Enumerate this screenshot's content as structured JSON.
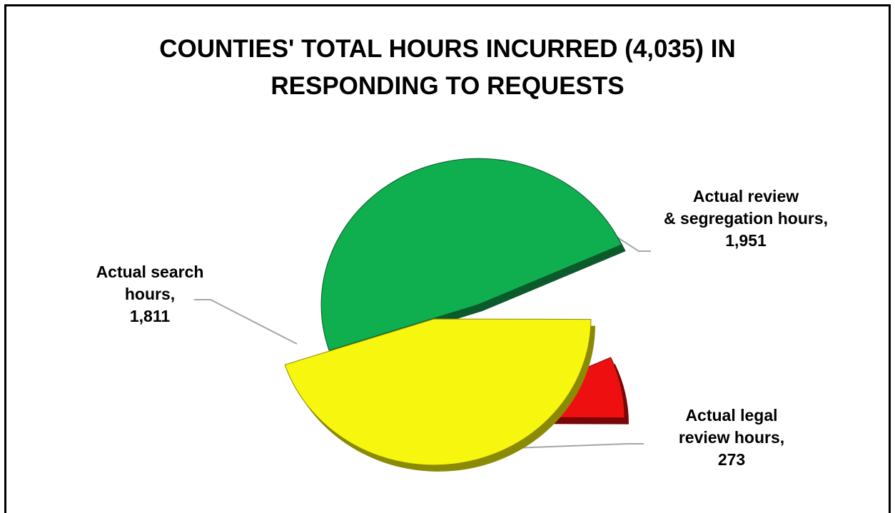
{
  "chart_data": {
    "type": "pie",
    "title_lines": [
      "COUNTIES' TOTAL HOURS INCURRED (4,035) IN",
      "RESPONDING TO REQUESTS"
    ],
    "total": 4035,
    "exploded": true,
    "style": "3d",
    "slices": [
      {
        "name": "Actual review & segregation hours",
        "value": 1951,
        "value_label": "1,951",
        "color": "#0fae4e",
        "dark": "#0b5a2c",
        "label_lines": [
          "Actual review",
          "& segregation hours,",
          "1,951"
        ]
      },
      {
        "name": "Actual legal review hours",
        "value": 273,
        "value_label": "273",
        "color": "#ee1010",
        "dark": "#7a0707",
        "label_lines": [
          "Actual legal",
          "review hours,",
          "273"
        ]
      },
      {
        "name": "Actual search hours",
        "value": 1811,
        "value_label": "1,811",
        "color": "#f6f60e",
        "dark": "#8a8a05",
        "label_lines": [
          "Actual search",
          "hours,",
          "1,811"
        ]
      }
    ]
  }
}
